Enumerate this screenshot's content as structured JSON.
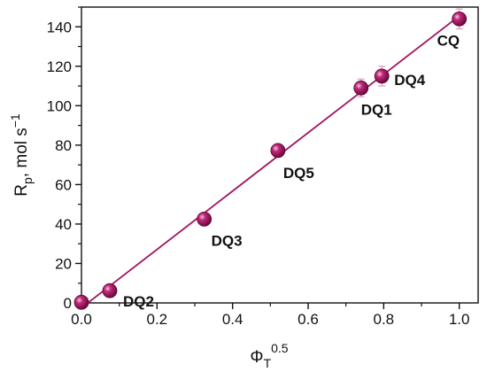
{
  "chart_data": {
    "type": "scatter",
    "x_axis": {
      "label_main": "Φ",
      "label_sub": "T",
      "label_sup": "0.5",
      "lim": [
        0.0,
        1.05
      ],
      "ticks": [
        0.0,
        0.2,
        0.4,
        0.6,
        0.8,
        1.0
      ],
      "tick_labels": [
        "0.0",
        "0.2",
        "0.4",
        "0.6",
        "0.8",
        "1.0"
      ]
    },
    "y_axis": {
      "label_main": "R",
      "label_sub": "p",
      "label_rest": ", mol s",
      "label_sup": "−1",
      "lim": [
        0,
        150
      ],
      "ticks": [
        0,
        20,
        40,
        60,
        80,
        100,
        120,
        140
      ],
      "tick_labels": [
        "0",
        "20",
        "40",
        "60",
        "80",
        "100",
        "120",
        "140"
      ]
    },
    "series": [
      {
        "points": [
          {
            "x": 0.0,
            "y": 0.3,
            "err": 0,
            "label": ""
          },
          {
            "x": 0.075,
            "y": 6.2,
            "err": 0,
            "label": "DQ2"
          },
          {
            "x": 0.325,
            "y": 42.5,
            "err": 0,
            "label": "DQ3"
          },
          {
            "x": 0.52,
            "y": 77.3,
            "err": 0,
            "label": "DQ5"
          },
          {
            "x": 0.74,
            "y": 109,
            "err": 4.5,
            "label": "DQ1"
          },
          {
            "x": 0.795,
            "y": 115,
            "err": 5,
            "label": "DQ4"
          },
          {
            "x": 1.0,
            "y": 144,
            "err": 5,
            "label": "CQ"
          }
        ]
      }
    ],
    "fit_line": {
      "x": [
        0.0,
        1.0
      ],
      "y": [
        -2.5,
        145.5
      ]
    },
    "grid": false,
    "legend": "none",
    "colors": {
      "marker": "#a3135f",
      "line": "#a3135f",
      "errorbar": "#d99bbd",
      "axis": "#111111"
    }
  }
}
